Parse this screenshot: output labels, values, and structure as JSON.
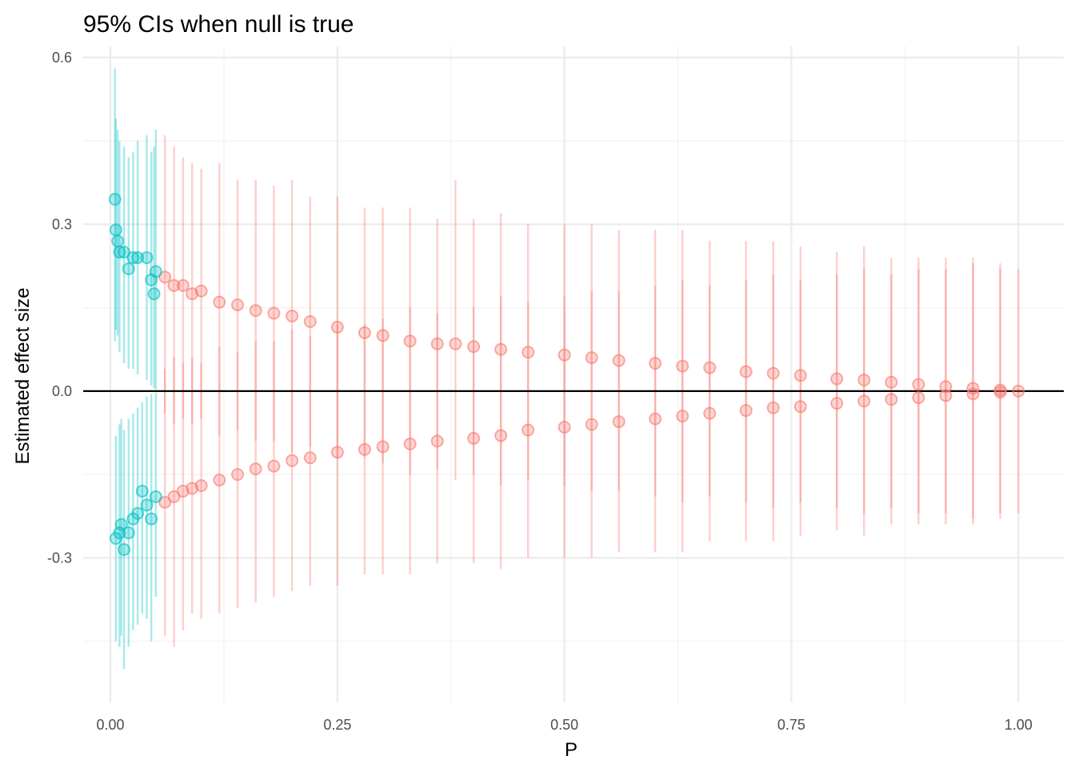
{
  "chart_data": {
    "type": "scatter",
    "title": "95% CIs when null is true",
    "xlabel": "P",
    "ylabel": "Estimated effect size",
    "xlim": [
      -0.03,
      1.05
    ],
    "ylim": [
      -0.56,
      0.62
    ],
    "x_ticks": [
      0.0,
      0.25,
      0.5,
      0.75,
      1.0
    ],
    "x_tick_labels": [
      "0.00",
      "0.25",
      "0.50",
      "0.75",
      "1.00"
    ],
    "y_ticks": [
      -0.3,
      0.0,
      0.3,
      0.6
    ],
    "y_tick_labels": [
      "-0.3",
      "0.0",
      "0.3",
      "0.6"
    ],
    "reference_line_y": 0.0,
    "grid": true,
    "legend": "none",
    "marker": "circle with 95% CI error bar",
    "series_colors": [
      "#F8766D",
      "#00BFC4"
    ],
    "series": [
      {
        "points": [
          {
            "x": 0.005,
            "y": 0.345,
            "lo": 0.09,
            "hi": 0.58
          },
          {
            "x": 0.006,
            "y": 0.29,
            "lo": 0.11,
            "hi": 0.49
          },
          {
            "x": 0.008,
            "y": 0.27,
            "lo": 0.1,
            "hi": 0.47
          },
          {
            "x": 0.01,
            "y": 0.25,
            "lo": 0.07,
            "hi": 0.45
          },
          {
            "x": 0.015,
            "y": 0.25,
            "lo": 0.05,
            "hi": 0.44
          },
          {
            "x": 0.02,
            "y": 0.22,
            "lo": 0.04,
            "hi": 0.42
          },
          {
            "x": 0.025,
            "y": 0.24,
            "lo": 0.04,
            "hi": 0.43
          },
          {
            "x": 0.03,
            "y": 0.24,
            "lo": 0.03,
            "hi": 0.45
          },
          {
            "x": 0.04,
            "y": 0.24,
            "lo": 0.02,
            "hi": 0.46
          },
          {
            "x": 0.045,
            "y": 0.2,
            "lo": 0.01,
            "hi": 0.43
          },
          {
            "x": 0.048,
            "y": 0.175,
            "lo": 0.005,
            "hi": 0.44
          },
          {
            "x": 0.05,
            "y": 0.215,
            "lo": 0.003,
            "hi": 0.47
          },
          {
            "x": 0.006,
            "y": -0.265,
            "lo": -0.45,
            "hi": -0.08
          },
          {
            "x": 0.01,
            "y": -0.255,
            "lo": -0.46,
            "hi": -0.06
          },
          {
            "x": 0.012,
            "y": -0.24,
            "lo": -0.44,
            "hi": -0.05
          },
          {
            "x": 0.015,
            "y": -0.285,
            "lo": -0.5,
            "hi": -0.07
          },
          {
            "x": 0.02,
            "y": -0.255,
            "lo": -0.46,
            "hi": -0.05
          },
          {
            "x": 0.025,
            "y": -0.23,
            "lo": -0.43,
            "hi": -0.04
          },
          {
            "x": 0.03,
            "y": -0.22,
            "lo": -0.42,
            "hi": -0.03
          },
          {
            "x": 0.035,
            "y": -0.18,
            "lo": -0.4,
            "hi": -0.02
          },
          {
            "x": 0.04,
            "y": -0.205,
            "lo": -0.41,
            "hi": -0.01
          },
          {
            "x": 0.045,
            "y": -0.23,
            "lo": -0.45,
            "hi": -0.005
          },
          {
            "x": 0.05,
            "y": -0.19,
            "lo": -0.37,
            "hi": -0.003
          }
        ]
      },
      {
        "points": [
          {
            "x": 0.06,
            "y": 0.205,
            "lo": -0.04,
            "hi": 0.46
          },
          {
            "x": 0.07,
            "y": 0.19,
            "lo": -0.06,
            "hi": 0.44
          },
          {
            "x": 0.08,
            "y": 0.19,
            "lo": -0.05,
            "hi": 0.42
          },
          {
            "x": 0.09,
            "y": 0.175,
            "lo": -0.06,
            "hi": 0.41
          },
          {
            "x": 0.1,
            "y": 0.18,
            "lo": -0.05,
            "hi": 0.4
          },
          {
            "x": 0.12,
            "y": 0.16,
            "lo": -0.08,
            "hi": 0.41
          },
          {
            "x": 0.14,
            "y": 0.155,
            "lo": -0.07,
            "hi": 0.38
          },
          {
            "x": 0.16,
            "y": 0.145,
            "lo": -0.09,
            "hi": 0.38
          },
          {
            "x": 0.18,
            "y": 0.14,
            "lo": -0.09,
            "hi": 0.37
          },
          {
            "x": 0.2,
            "y": 0.135,
            "lo": -0.11,
            "hi": 0.38
          },
          {
            "x": 0.22,
            "y": 0.125,
            "lo": -0.1,
            "hi": 0.35
          },
          {
            "x": 0.25,
            "y": 0.115,
            "lo": -0.12,
            "hi": 0.35
          },
          {
            "x": 0.28,
            "y": 0.105,
            "lo": -0.12,
            "hi": 0.33
          },
          {
            "x": 0.3,
            "y": 0.1,
            "lo": -0.13,
            "hi": 0.33
          },
          {
            "x": 0.33,
            "y": 0.09,
            "lo": -0.15,
            "hi": 0.33
          },
          {
            "x": 0.36,
            "y": 0.085,
            "lo": -0.14,
            "hi": 0.31
          },
          {
            "x": 0.38,
            "y": 0.085,
            "lo": -0.16,
            "hi": 0.38
          },
          {
            "x": 0.4,
            "y": 0.08,
            "lo": -0.15,
            "hi": 0.31
          },
          {
            "x": 0.43,
            "y": 0.075,
            "lo": -0.17,
            "hi": 0.32
          },
          {
            "x": 0.46,
            "y": 0.07,
            "lo": -0.16,
            "hi": 0.3
          },
          {
            "x": 0.5,
            "y": 0.065,
            "lo": -0.17,
            "hi": 0.3
          },
          {
            "x": 0.53,
            "y": 0.06,
            "lo": -0.18,
            "hi": 0.3
          },
          {
            "x": 0.56,
            "y": 0.055,
            "lo": -0.18,
            "hi": 0.29
          },
          {
            "x": 0.6,
            "y": 0.05,
            "lo": -0.19,
            "hi": 0.29
          },
          {
            "x": 0.63,
            "y": 0.045,
            "lo": -0.2,
            "hi": 0.29
          },
          {
            "x": 0.66,
            "y": 0.042,
            "lo": -0.19,
            "hi": 0.27
          },
          {
            "x": 0.7,
            "y": 0.035,
            "lo": -0.2,
            "hi": 0.27
          },
          {
            "x": 0.73,
            "y": 0.032,
            "lo": -0.21,
            "hi": 0.27
          },
          {
            "x": 0.76,
            "y": 0.028,
            "lo": -0.2,
            "hi": 0.26
          },
          {
            "x": 0.8,
            "y": 0.022,
            "lo": -0.21,
            "hi": 0.25
          },
          {
            "x": 0.83,
            "y": 0.02,
            "lo": -0.22,
            "hi": 0.26
          },
          {
            "x": 0.86,
            "y": 0.016,
            "lo": -0.21,
            "hi": 0.24
          },
          {
            "x": 0.89,
            "y": 0.012,
            "lo": -0.22,
            "hi": 0.24
          },
          {
            "x": 0.92,
            "y": 0.008,
            "lo": -0.22,
            "hi": 0.24
          },
          {
            "x": 0.95,
            "y": 0.005,
            "lo": -0.23,
            "hi": 0.24
          },
          {
            "x": 0.98,
            "y": 0.002,
            "lo": -0.22,
            "hi": 0.23
          },
          {
            "x": 1.0,
            "y": 0.0,
            "lo": -0.22,
            "hi": 0.22
          },
          {
            "x": 0.06,
            "y": -0.2,
            "lo": -0.44,
            "hi": 0.04
          },
          {
            "x": 0.07,
            "y": -0.19,
            "lo": -0.46,
            "hi": 0.06
          },
          {
            "x": 0.08,
            "y": -0.18,
            "lo": -0.43,
            "hi": 0.05
          },
          {
            "x": 0.09,
            "y": -0.175,
            "lo": -0.4,
            "hi": 0.06
          },
          {
            "x": 0.1,
            "y": -0.17,
            "lo": -0.41,
            "hi": 0.05
          },
          {
            "x": 0.12,
            "y": -0.16,
            "lo": -0.4,
            "hi": 0.08
          },
          {
            "x": 0.14,
            "y": -0.15,
            "lo": -0.39,
            "hi": 0.07
          },
          {
            "x": 0.16,
            "y": -0.14,
            "lo": -0.38,
            "hi": 0.09
          },
          {
            "x": 0.18,
            "y": -0.135,
            "lo": -0.37,
            "hi": 0.09
          },
          {
            "x": 0.2,
            "y": -0.125,
            "lo": -0.36,
            "hi": 0.11
          },
          {
            "x": 0.22,
            "y": -0.12,
            "lo": -0.35,
            "hi": 0.1
          },
          {
            "x": 0.25,
            "y": -0.11,
            "lo": -0.35,
            "hi": 0.12
          },
          {
            "x": 0.28,
            "y": -0.105,
            "lo": -0.33,
            "hi": 0.12
          },
          {
            "x": 0.3,
            "y": -0.1,
            "lo": -0.33,
            "hi": 0.13
          },
          {
            "x": 0.33,
            "y": -0.095,
            "lo": -0.33,
            "hi": 0.15
          },
          {
            "x": 0.36,
            "y": -0.09,
            "lo": -0.31,
            "hi": 0.14
          },
          {
            "x": 0.4,
            "y": -0.085,
            "lo": -0.31,
            "hi": 0.15
          },
          {
            "x": 0.43,
            "y": -0.08,
            "lo": -0.32,
            "hi": 0.17
          },
          {
            "x": 0.46,
            "y": -0.07,
            "lo": -0.3,
            "hi": 0.16
          },
          {
            "x": 0.5,
            "y": -0.065,
            "lo": -0.3,
            "hi": 0.17
          },
          {
            "x": 0.53,
            "y": -0.06,
            "lo": -0.3,
            "hi": 0.18
          },
          {
            "x": 0.56,
            "y": -0.055,
            "lo": -0.29,
            "hi": 0.18
          },
          {
            "x": 0.6,
            "y": -0.05,
            "lo": -0.29,
            "hi": 0.19
          },
          {
            "x": 0.63,
            "y": -0.045,
            "lo": -0.29,
            "hi": 0.2
          },
          {
            "x": 0.66,
            "y": -0.04,
            "lo": -0.27,
            "hi": 0.19
          },
          {
            "x": 0.7,
            "y": -0.035,
            "lo": -0.27,
            "hi": 0.2
          },
          {
            "x": 0.73,
            "y": -0.03,
            "lo": -0.27,
            "hi": 0.21
          },
          {
            "x": 0.76,
            "y": -0.028,
            "lo": -0.26,
            "hi": 0.2
          },
          {
            "x": 0.8,
            "y": -0.022,
            "lo": -0.25,
            "hi": 0.21
          },
          {
            "x": 0.83,
            "y": -0.018,
            "lo": -0.26,
            "hi": 0.22
          },
          {
            "x": 0.86,
            "y": -0.015,
            "lo": -0.24,
            "hi": 0.21
          },
          {
            "x": 0.89,
            "y": -0.012,
            "lo": -0.24,
            "hi": 0.22
          },
          {
            "x": 0.92,
            "y": -0.008,
            "lo": -0.24,
            "hi": 0.22
          },
          {
            "x": 0.95,
            "y": -0.005,
            "lo": -0.24,
            "hi": 0.23
          },
          {
            "x": 0.98,
            "y": -0.002,
            "lo": -0.23,
            "hi": 0.22
          }
        ]
      }
    ]
  }
}
